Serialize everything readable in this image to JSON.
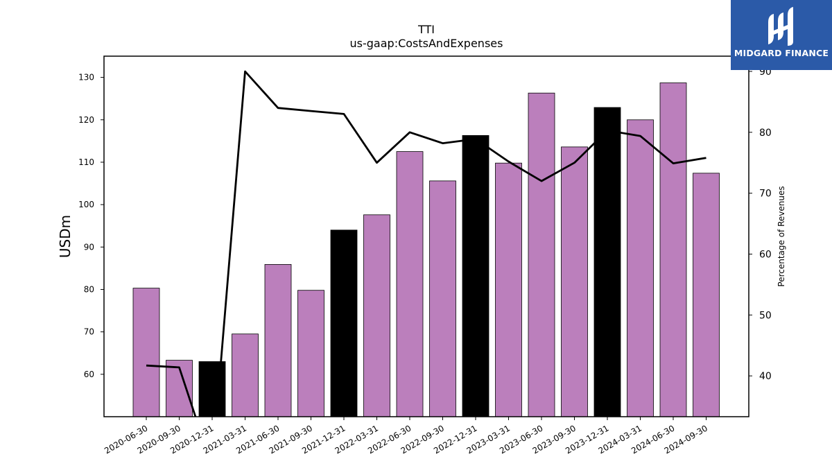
{
  "logo": {
    "text": "MIDGARD FINANCE"
  },
  "chart_data": {
    "type": "bar",
    "title": "TTI",
    "subtitle": "us-gaap:CostsAndExpenses",
    "ylabel": "USDm",
    "y2label": "Percentage of Revenues",
    "ylim": [
      50,
      135
    ],
    "y2lim": [
      33.3,
      92.5
    ],
    "yticks": [
      60,
      70,
      80,
      90,
      100,
      110,
      120,
      130
    ],
    "y2ticks": [
      40,
      50,
      60,
      70,
      80,
      90
    ],
    "categories": [
      "2020-06-30",
      "2020-09-30",
      "2020-12-31",
      "2021-03-31",
      "2021-06-30",
      "2021-09-30",
      "2021-12-31",
      "2022-03-31",
      "2022-06-30",
      "2022-09-30",
      "2022-12-31",
      "2023-03-31",
      "2023-06-30",
      "2023-09-30",
      "2023-12-31",
      "2024-03-31",
      "2024-06-30",
      "2024-09-30"
    ],
    "series": [
      {
        "values": [
          80.3,
          63.3,
          63.0,
          69.5,
          85.9,
          79.8,
          94.0,
          97.6,
          112.5,
          105.6,
          116.3,
          109.8,
          126.3,
          113.6,
          122.9,
          120.0,
          128.7,
          107.4
        ]
      },
      {
        "type": "line",
        "axis": "right",
        "values": [
          41.7,
          41.4,
          25.0,
          90.0,
          84.0,
          83.5,
          83.0,
          75.0,
          80.0,
          78.2,
          78.9,
          75.2,
          72.0,
          75.0,
          80.3,
          79.4,
          74.9,
          75.8
        ]
      }
    ],
    "bar_colors": [
      "#bb7fbc",
      "#bb7fbc",
      "#000000",
      "#bb7fbc",
      "#bb7fbc",
      "#bb7fbc",
      "#000000",
      "#bb7fbc",
      "#bb7fbc",
      "#bb7fbc",
      "#000000",
      "#bb7fbc",
      "#bb7fbc",
      "#bb7fbc",
      "#000000",
      "#bb7fbc",
      "#bb7fbc",
      "#bb7fbc"
    ],
    "line_color": "#000000",
    "grid": false,
    "legend": "none"
  }
}
